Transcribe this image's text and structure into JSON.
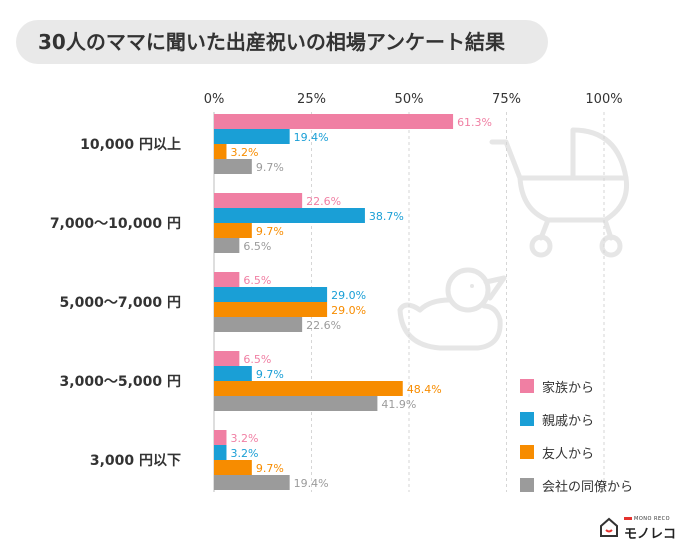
{
  "title": "30人のママに聞いた出産祝いの相場アンケート結果",
  "chart_data": {
    "type": "bar",
    "orientation": "horizontal",
    "xlim": [
      0,
      100
    ],
    "x_ticks": [
      "0%",
      "25%",
      "50%",
      "75%",
      "100%"
    ],
    "grid": true,
    "legend_position": "bottom-right",
    "categories": [
      "10,000 円以上",
      "7,000〜10,000 円",
      "5,000〜7,000 円",
      "3,000〜5,000 円",
      "3,000 円以下"
    ],
    "series": [
      {
        "name": "家族から",
        "color": "#f07fa3",
        "values": [
          61.3,
          22.6,
          6.5,
          6.5,
          3.2
        ],
        "labels": [
          "61.3%",
          "22.6%",
          "6.5%",
          "6.5%",
          "3.2%"
        ]
      },
      {
        "name": "親戚から",
        "color": "#1a9fd6",
        "values": [
          19.4,
          38.7,
          29.0,
          9.7,
          3.2
        ],
        "labels": [
          "19.4%",
          "38.7%",
          "29.0%",
          "9.7%",
          "3.2%"
        ]
      },
      {
        "name": "友人から",
        "color": "#f78c00",
        "values": [
          3.2,
          9.7,
          29.0,
          48.4,
          9.7
        ],
        "labels": [
          "3.2%",
          "9.7%",
          "29.0%",
          "48.4%",
          "9.7%"
        ]
      },
      {
        "name": "会社の同僚から",
        "color": "#9b9b9b",
        "values": [
          9.7,
          6.5,
          22.6,
          41.9,
          19.4
        ],
        "labels": [
          "9.7%",
          "6.5%",
          "22.6%",
          "41.9%",
          "19.4%"
        ]
      }
    ]
  },
  "logo": {
    "small_text": "MONO RECO",
    "text": "モノレコ"
  },
  "decorations": [
    "stroller-icon",
    "rubber-duck-icon"
  ]
}
